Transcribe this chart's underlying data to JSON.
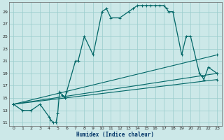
{
  "title": "",
  "xlabel": "Humidex (Indice chaleur)",
  "ylabel": "",
  "xlim": [
    -0.5,
    23.5
  ],
  "ylim": [
    10.5,
    30.5
  ],
  "xticks": [
    0,
    1,
    2,
    3,
    4,
    5,
    6,
    7,
    8,
    9,
    10,
    11,
    12,
    13,
    14,
    15,
    16,
    17,
    18,
    19,
    20,
    21,
    22,
    23
  ],
  "yticks": [
    11,
    13,
    15,
    17,
    19,
    21,
    23,
    25,
    27,
    29
  ],
  "bg_color": "#cce8e8",
  "grid_color": "#99cccc",
  "line_color": "#006666",
  "series_main": [
    [
      0,
      14
    ],
    [
      1,
      13
    ],
    [
      2,
      13
    ],
    [
      3,
      14
    ],
    [
      4,
      12
    ],
    [
      4.2,
      11.5
    ],
    [
      4.5,
      11
    ],
    [
      4.8,
      11
    ],
    [
      5.0,
      12.5
    ],
    [
      5.2,
      16
    ],
    [
      5.5,
      15.5
    ],
    [
      5.8,
      15
    ],
    [
      6.0,
      16
    ],
    [
      7.0,
      21
    ],
    [
      7.3,
      21
    ],
    [
      8.0,
      25
    ],
    [
      9.0,
      22
    ],
    [
      10.0,
      29
    ],
    [
      10.5,
      29.5
    ],
    [
      11.0,
      28
    ],
    [
      12.0,
      28
    ],
    [
      13.0,
      29
    ],
    [
      13.5,
      29.5
    ],
    [
      14.0,
      30
    ],
    [
      14.5,
      30
    ],
    [
      15.0,
      30
    ],
    [
      15.5,
      30
    ],
    [
      16.0,
      30
    ],
    [
      16.5,
      30
    ],
    [
      17.0,
      30
    ],
    [
      17.3,
      29.5
    ],
    [
      17.5,
      29
    ],
    [
      18.0,
      29
    ],
    [
      19.0,
      22
    ],
    [
      19.5,
      25
    ],
    [
      20.0,
      25
    ],
    [
      21.0,
      19
    ],
    [
      21.3,
      18.5
    ],
    [
      21.5,
      18
    ],
    [
      22.0,
      20
    ],
    [
      23.0,
      19
    ]
  ],
  "series2": [
    [
      0,
      14
    ],
    [
      23,
      22
    ]
  ],
  "series3": [
    [
      0,
      14
    ],
    [
      23,
      19
    ]
  ],
  "series4": [
    [
      0,
      14
    ],
    [
      23,
      18
    ]
  ]
}
